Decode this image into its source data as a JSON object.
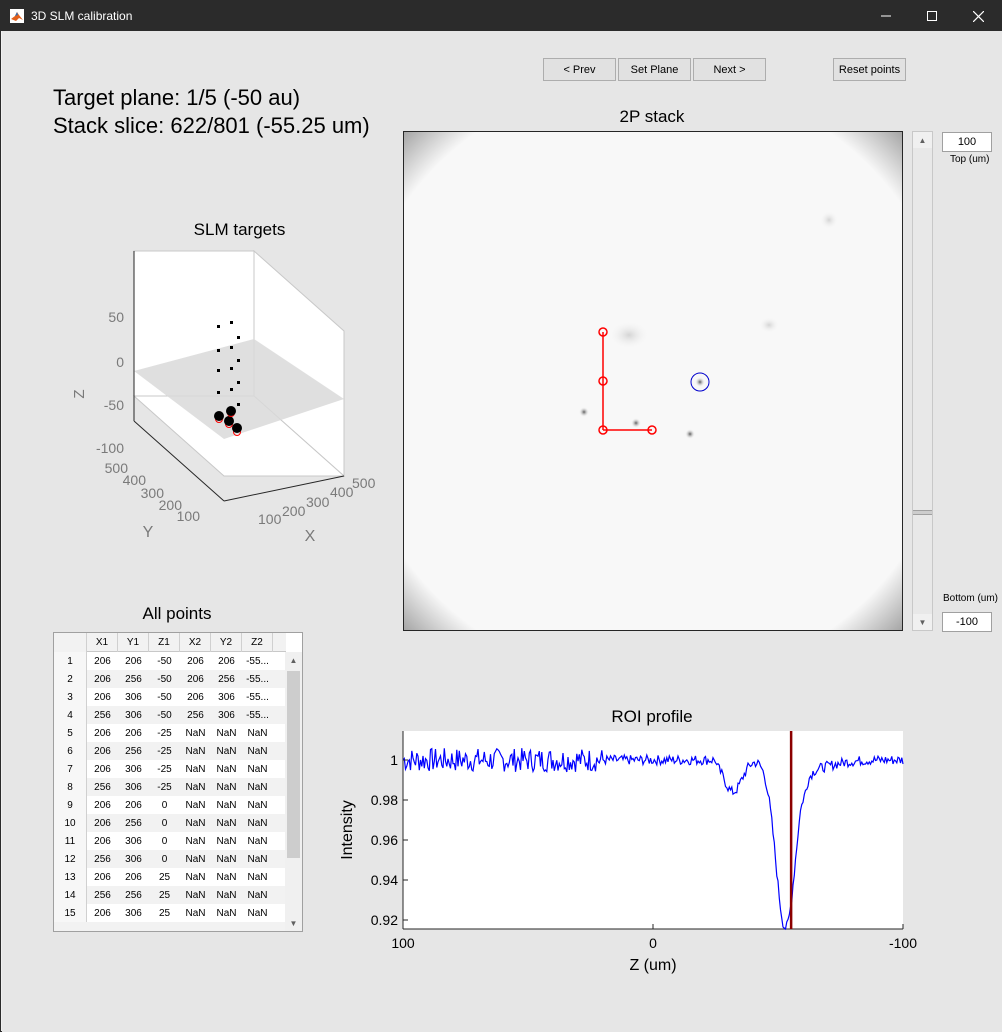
{
  "window": {
    "title": "3D SLM calibration",
    "controls": [
      "–",
      "☐",
      "✕"
    ]
  },
  "toolbar": {
    "prev_label": "< Prev",
    "set_plane_label": "Set Plane",
    "next_label": "Next >",
    "reset_label": "Reset points"
  },
  "info": {
    "target_plane": "Target plane: 1/5 (-50 au)",
    "stack_slice": "Stack slice: 622/801 (-55.25 um)"
  },
  "slm_targets": {
    "title": "SLM targets",
    "z_label": "Z",
    "y_label": "Y",
    "x_label": "X",
    "z_ticks": [
      "50",
      "0",
      "-50",
      "-100"
    ],
    "y_ticks": [
      "500",
      "400",
      "300",
      "200",
      "100"
    ],
    "x_ticks": [
      "100",
      "200",
      "300",
      "400",
      "500"
    ]
  },
  "stack": {
    "title": "2P stack",
    "top_value": "100",
    "top_label": "Top (um)",
    "bottom_value": "-100",
    "bottom_label": "Bottom (um)",
    "slider_fraction": 0.76
  },
  "table": {
    "title": "All points",
    "columns": [
      "X1",
      "Y1",
      "Z1",
      "X2",
      "Y2",
      "Z2"
    ],
    "rows": [
      [
        "1",
        "206",
        "206",
        "-50",
        "206",
        "206",
        "-55..."
      ],
      [
        "2",
        "206",
        "256",
        "-50",
        "206",
        "256",
        "-55..."
      ],
      [
        "3",
        "206",
        "306",
        "-50",
        "206",
        "306",
        "-55..."
      ],
      [
        "4",
        "256",
        "306",
        "-50",
        "256",
        "306",
        "-55..."
      ],
      [
        "5",
        "206",
        "206",
        "-25",
        "NaN",
        "NaN",
        "NaN"
      ],
      [
        "6",
        "206",
        "256",
        "-25",
        "NaN",
        "NaN",
        "NaN"
      ],
      [
        "7",
        "206",
        "306",
        "-25",
        "NaN",
        "NaN",
        "NaN"
      ],
      [
        "8",
        "256",
        "306",
        "-25",
        "NaN",
        "NaN",
        "NaN"
      ],
      [
        "9",
        "206",
        "206",
        "0",
        "NaN",
        "NaN",
        "NaN"
      ],
      [
        "10",
        "206",
        "256",
        "0",
        "NaN",
        "NaN",
        "NaN"
      ],
      [
        "11",
        "206",
        "306",
        "0",
        "NaN",
        "NaN",
        "NaN"
      ],
      [
        "12",
        "256",
        "306",
        "0",
        "NaN",
        "NaN",
        "NaN"
      ],
      [
        "13",
        "206",
        "206",
        "25",
        "NaN",
        "NaN",
        "NaN"
      ],
      [
        "14",
        "256",
        "256",
        "25",
        "NaN",
        "NaN",
        "NaN"
      ],
      [
        "15",
        "206",
        "306",
        "25",
        "NaN",
        "NaN",
        "NaN"
      ]
    ]
  },
  "roi_profile": {
    "title": "ROI profile",
    "ylabel": "Intensity",
    "xlabel": "Z (um)",
    "x_ticks": [
      "100",
      "0",
      "-100"
    ],
    "y_ticks": [
      "1",
      "0.98",
      "0.96",
      "0.94",
      "0.92"
    ],
    "line_color": "#0000ff",
    "marker_color": "#8b0000",
    "marker_z": -55.25
  },
  "colors": {
    "title_bar": "#2b2b2b",
    "background": "#e6e6e6",
    "roi_points": "#ff0000",
    "selected_circle": "#0000cc"
  }
}
